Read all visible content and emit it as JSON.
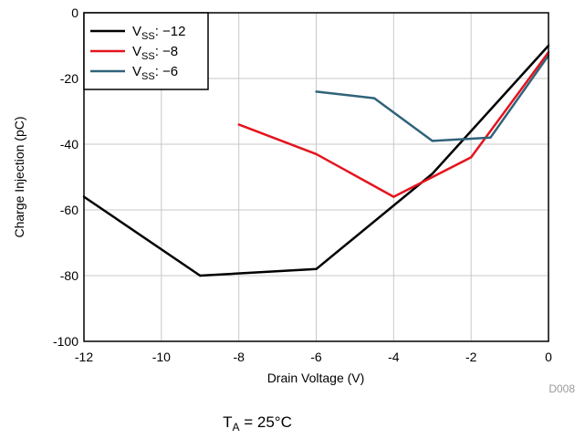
{
  "chart_data": {
    "type": "line",
    "xlabel": "Drain Voltage (V)",
    "ylabel": "Charge Injection (pC)",
    "xlim": [
      -12,
      0
    ],
    "ylim": [
      -100,
      0
    ],
    "xticks": [
      -12,
      -10,
      -8,
      -6,
      -4,
      -2,
      0
    ],
    "yticks": [
      0,
      -20,
      -40,
      -60,
      -80,
      -100
    ],
    "grid": true,
    "legend": {
      "position": "top-left"
    },
    "series": [
      {
        "name": "VSS: −12",
        "name_main": "V",
        "name_sub": "SS",
        "name_rest": ": −12",
        "color": "#000000",
        "x": [
          -12,
          -9,
          -6,
          -3,
          0
        ],
        "y": [
          -56,
          -80,
          -78,
          -49,
          -10
        ]
      },
      {
        "name": "VSS: −8",
        "name_main": "V",
        "name_sub": "SS",
        "name_rest": ": −8",
        "color": "#e4141e",
        "x": [
          -8,
          -6,
          -4,
          -2,
          0
        ],
        "y": [
          -34,
          -43,
          -56,
          -44,
          -12
        ]
      },
      {
        "name": "VSS: −6",
        "name_main": "V",
        "name_sub": "SS",
        "name_rest": ": −6",
        "color": "#30637a",
        "x": [
          -6,
          -4.5,
          -3,
          -1.5,
          0
        ],
        "y": [
          -24,
          -26,
          -39,
          -38,
          -13
        ]
      }
    ],
    "annotations": {
      "figure_code": "D008",
      "condition_main": "T",
      "condition_sub": "A",
      "condition_rest": " = 25°C"
    }
  }
}
